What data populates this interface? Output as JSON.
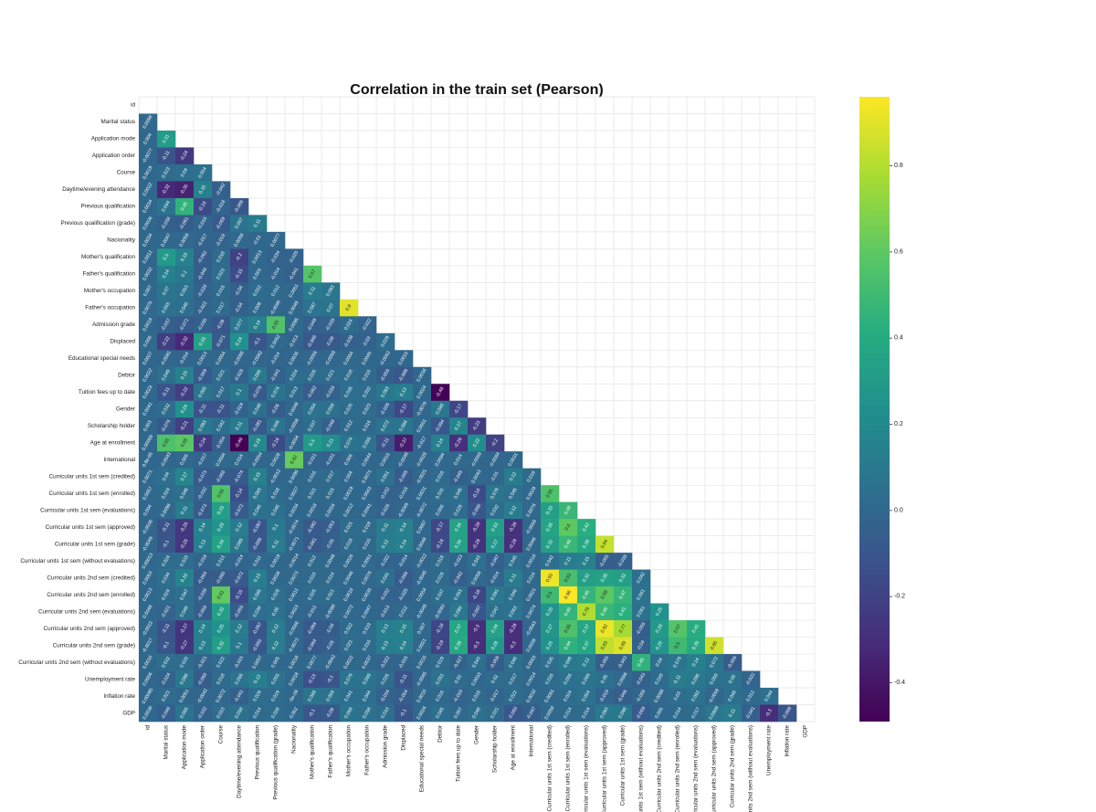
{
  "chart_data": {
    "type": "heatmap",
    "title": "Correlation in the train set (Pearson)",
    "colormap": "viridis",
    "mask": "upper-triangle",
    "grid": true,
    "colorbar": {
      "placement": "right",
      "range": [
        -0.49,
        0.96
      ],
      "ticks": [
        "0.8",
        "0.6",
        "0.4",
        "0.2",
        "0.0",
        "-0.2",
        "-0.4"
      ],
      "tick_values": [
        0.8,
        0.6,
        0.4,
        0.2,
        0.0,
        -0.2,
        -0.4
      ]
    },
    "labels": [
      "id",
      "Marital status",
      "Application mode",
      "Application order",
      "Course",
      "Daytime/evening attendance",
      "Previous qualification",
      "Previous qualification (grade)",
      "Nacionality",
      "Mother's qualification",
      "Father's qualification",
      "Mother's occupation",
      "Father's occupation",
      "Admission grade",
      "Displaced",
      "Educational special needs",
      "Debtor",
      "Tuition fees up to date",
      "Gender",
      "Scholarship holder",
      "Age at enrollment",
      "International",
      "Curricular units 1st sem (credited)",
      "Curricular units 1st sem (enrolled)",
      "Curricular units 1st sem (evaluations)",
      "Curricular units 1st sem (approved)",
      "Curricular units 1st sem (grade)",
      "Curricular units 1st sem (without evaluations)",
      "Curricular units 2nd sem (credited)",
      "Curricular units 2nd sem (enrolled)",
      "Curricular units 2nd sem (evaluations)",
      "Curricular units 2nd sem (approved)",
      "Curricular units 2nd sem (grade)",
      "Curricular units 2nd sem (without evaluations)",
      "Unemployment rate",
      "Inflation rate",
      "GDP"
    ],
    "cell_text": [
      [],
      [
        "0.0098"
      ],
      [
        "0.004",
        "0.31"
      ],
      [
        "-0.0077",
        "-0.11",
        "-0.24"
      ],
      [
        "0.0019",
        "0.023",
        "0.04",
        "0.054"
      ],
      [
        "0.0022",
        "-0.32",
        "-0.35",
        "0.15",
        "-0.042"
      ],
      [
        "0.0034",
        "0.064",
        "0.45",
        "-0.16",
        "-0.018",
        "-0.086"
      ],
      [
        "0.0036",
        "-0.038",
        "-0.061",
        "-0.016",
        "-0.069",
        "0.067",
        "0.11"
      ],
      [
        "0.0034",
        "0.0047",
        "0.0059",
        "-0.017",
        "-0.019",
        "0.0068",
        "-0.01",
        "0.0077"
      ],
      [
        "0.0012",
        "0.3",
        "0.16",
        "-0.062",
        "0.018",
        "-0.2",
        "0.0013",
        "-0.034",
        "-0.025"
      ],
      [
        "0.0032",
        "0.14",
        "0.1",
        "-0.046",
        "0.023",
        "-0.15",
        "0.003",
        "-0.014",
        "-0.041",
        "0.57"
      ],
      [
        "0.007",
        "0.07",
        "0.053",
        "-0.026",
        "0.016",
        "-0.04",
        "0.022",
        "0.012",
        "0.0051",
        "0.11",
        "0.083"
      ],
      [
        "0.0075",
        "0.055",
        "0.046",
        "-0.022",
        "0.017",
        "-0.04",
        "0.008",
        "-0.0096",
        "0.0049",
        "0.067",
        "0.07",
        "0.9"
      ],
      [
        "0.0019",
        "-0.037",
        "-0.071",
        "-0.036",
        "-0.09",
        "0.077",
        "0.14",
        "0.56",
        "0.0095",
        "-0.049",
        "-0.028",
        "0.024",
        "-0.022"
      ],
      [
        "0.006",
        "-0.22",
        "-0.32",
        "0.33",
        "-0.071",
        "0.24",
        "-0.1",
        "0.0062",
        "-0.013",
        "-0.086",
        "-0.08",
        "-0.038",
        "-0.03",
        "0.029"
      ],
      [
        "0.0027",
        "-0.0081",
        "-0.014",
        "0.0013",
        "0.0054",
        "-0.0095",
        "-0.0082",
        "-0.014",
        "0.0036",
        "-0.0056",
        "-0.0059",
        "0.0064",
        "0.0045",
        "-0.0062",
        "0.0015"
      ],
      [
        "0.0022",
        "0.049",
        "0.15",
        "-0.069",
        "0.021",
        "-0.026",
        "0.095",
        "-0.041",
        "0.024",
        "0.026",
        "0.021",
        "0.018",
        "0.016",
        "-0.056",
        "-0.089",
        "0.0036"
      ],
      [
        "0.0023",
        "-0.11",
        "-0.22",
        "0.065",
        "0.017",
        "0.1",
        "-0.078",
        "0.074",
        "0.013",
        "-0.062",
        "-0.028",
        "0.035",
        "0.032",
        "0.093",
        "0.13",
        "0.0024",
        "-0.48"
      ],
      [
        "0.0041",
        "0.032",
        "0.24",
        "-0.11",
        "-0.11",
        "-0.024",
        "0.048",
        "-0.06",
        "0.0049",
        "0.054",
        "0.058",
        "0.025",
        "0.023",
        "-0.036",
        "-0.17",
        "-0.0078",
        "0.086",
        "-0.17"
      ],
      [
        "0.003",
        "-0.076",
        "-0.21",
        "0.093",
        "0.042",
        "0.11",
        "-0.081",
        "0.066",
        "-0.0058",
        "0.037",
        "-0.049",
        "0.012",
        "0.016",
        "0.072",
        "0.084",
        "0.0061",
        "-0.094",
        "0.17",
        "-0.23"
      ],
      [
        "0.00069",
        "0.55",
        "0.59",
        "-0.24",
        "-0.054",
        "-0.49",
        "0.19",
        "-0.16",
        "-0.0054",
        "0.3",
        "0.21",
        "0.074",
        "0.059",
        "-0.11",
        "-0.37",
        "-0.017",
        "0.14",
        "-0.29",
        "0.22",
        "-0.2"
      ],
      [
        "0.8e-05",
        "-0.0043",
        "0.006",
        "-0.017",
        "0.0084",
        "0.014",
        "-0.0054",
        "0.0028",
        "0.62",
        "-0.021",
        "-0.031",
        "0.006",
        "0.0044",
        "0.0015",
        "-0.0048",
        "-0.0028",
        "0.0094",
        "0.014",
        "-0.0069",
        "-0.0064",
        "0.0031"
      ],
      [
        "0.0071",
        "0.04",
        "0.17",
        "-0.073",
        "-0.066",
        "-0.074",
        "0.15",
        "-0.0012",
        "0.0095",
        "0.016",
        "0.017",
        "0.004",
        "0.0071",
        "0.051",
        "-0.065",
        "-0.0021",
        "0.018",
        "-0.045",
        "0.0043",
        "-0.01",
        "0.12",
        "0.018"
      ],
      [
        "0.0057",
        "0.024",
        "0.046",
        "-0.032",
        "0.56",
        "-0.14",
        "0.083",
        "0.018",
        "0.0027",
        "0.021",
        "0.015",
        "0.0019",
        "0.0043",
        "-0.032",
        "-0.018",
        "0.0031",
        "0.031",
        "0.045",
        "-0.16",
        "0.078",
        "0.045",
        "0.0029",
        "0.55"
      ],
      [
        "0.004",
        "0.0098",
        "0.11",
        "-0.073",
        "0.33",
        "-0.072",
        "0.046",
        "0.046",
        "0.0034",
        "0.0018",
        "0.0026",
        "0.0012",
        "0.0041",
        "-0.026",
        "-0.0069",
        "-0.0072",
        "0.006",
        "0.029",
        "-0.096",
        "0.032",
        "0.12",
        "0.0076",
        "0.33",
        "0.48"
      ],
      [
        "-0.0036",
        "-0.11",
        "-0.25",
        "0.14",
        "0.26",
        "0.12",
        "-0.097",
        "0.1",
        "-0.0074",
        "-0.082",
        "-0.053",
        "0.021",
        "0.018",
        "0.11",
        "0.14",
        "0.0087",
        "-0.17",
        "0.34",
        "-0.28",
        "0.33",
        "-0.28",
        "-0.0059",
        "0.36",
        "0.6",
        "0.42"
      ],
      [
        "-0.0049",
        "-0.1",
        "-0.25",
        "0.13",
        "0.34",
        "0.089",
        "-0.088",
        "0.11",
        "-0.0071",
        "-0.081",
        "-0.05",
        "0.019",
        "0.016",
        "0.12",
        "0.14",
        "0.0048",
        "-0.16",
        "0.34",
        "-0.28",
        "0.27",
        "-0.29",
        "0.0046",
        "0.32",
        "0.48",
        "0.39",
        "0.84"
      ],
      [
        "0.00013",
        "0.024",
        "0.033",
        "-0.018",
        "0.013",
        "-0.014",
        "0.011",
        "0.0018",
        "-0.0014",
        "0.012",
        "0.0049",
        "0.0026",
        "0.0061",
        "-0.022",
        "-0.014",
        "-0.0012",
        "0.018",
        "-0.023",
        "0.043",
        "-0.047",
        "0.045",
        "0.0016",
        "0.042",
        "0.11",
        "0.15",
        "-0.055",
        "-0.038"
      ],
      [
        "0.0053",
        "0.034",
        "0.16",
        "-0.064",
        "-0.066",
        "-0.072",
        "0.13",
        "0.0036",
        "0.0073",
        "0.016",
        "0.014",
        "0.0046",
        "0.0076",
        "0.041",
        "-0.068",
        "-0.0045",
        "0.019",
        "-0.042",
        "0.0058",
        "-0.014",
        "0.11",
        "0.014",
        "0.93",
        "0.53",
        "0.32",
        "0.35",
        "0.32",
        "0.042"
      ],
      [
        "0.0013",
        "0.024",
        "0.047",
        "-0.039",
        "0.61",
        "-0.15",
        "0.085",
        "0.029",
        "0.0011",
        "0.025",
        "0.021",
        "0.0016",
        "0.0035",
        "-0.032",
        "-0.025",
        "0.0054",
        "0.037",
        "0.053",
        "-0.18",
        "0.091",
        "0.046",
        "0.0021",
        "0.5",
        "0.96",
        "0.46",
        "0.59",
        "0.47",
        "0.061"
      ],
      [
        "0.0048",
        "-0.021",
        "0.048",
        "-0.056",
        "0.33",
        "-0.055",
        "0.038",
        "0.06",
        "0.0023",
        "-0.012",
        "-0.0088",
        "0.0072",
        "0.0047",
        "-0.013",
        "0.012",
        "-0.0049",
        "-0.0093",
        "0.086",
        "-0.097",
        "0.047",
        "0.063",
        "0.0074",
        "0.26",
        "0.46",
        "0.79",
        "0.48",
        "0.43",
        "0.061",
        "0.25"
      ],
      [
        "-0.0022",
        "-0.11",
        "-0.27",
        "0.14",
        "0.25",
        "0.12",
        "-0.097",
        "0.12",
        "-0.0066",
        "-0.084",
        "-0.06",
        "0.022",
        "0.019",
        "0.13",
        "0.15",
        "0.007",
        "-0.18",
        "0.37",
        "-0.3",
        "0.34",
        "-0.29",
        "-0.0043",
        "0.27",
        "0.55",
        "0.37",
        "0.92",
        "0.77",
        "-0.056",
        "0.29",
        "0.57",
        "0.41"
      ],
      [
        "-0.0017",
        "-0.1",
        "-0.27",
        "0.13",
        "0.32",
        "0.1",
        "-0.093",
        "0.12",
        "-0.0073",
        "-0.084",
        "-0.05",
        "0.021",
        "0.016",
        "0.13",
        "0.14",
        "0.0021",
        "-0.19",
        "0.39",
        "-0.3",
        "0.28",
        "-0.3",
        "0.0038",
        "0.25",
        "0.44",
        "0.37",
        "0.83",
        "0.89",
        "-0.04",
        "0.26",
        "0.5",
        "0.39",
        "0.86"
      ],
      [
        "0.0033",
        "0.032",
        "0.033",
        "-0.021",
        "0.022",
        "-0.015",
        "0.0057",
        "0.005",
        "0.0018",
        "0.0077",
        "-0.0042",
        "0.0022",
        "0.0037",
        "-0.022",
        "-0.015",
        "0.0015",
        "0.019",
        "-0.027",
        "0.043",
        "-0.058",
        "0.046",
        "0.0003",
        "0.035",
        "0.098",
        "0.12",
        "-0.055",
        "-0.043",
        "0.45",
        "0.04",
        "0.079",
        "0.14",
        "0.072",
        "-0.066"
      ],
      [
        "0.0006",
        "-0.024",
        "0.096",
        "-0.066",
        "0.018",
        "0.066",
        "0.13",
        "0.055",
        "0.0018",
        "-0.13",
        "-0.1",
        "0.079",
        "0.069",
        "0.025",
        "-0.11",
        "-0.0065",
        "0.051",
        "0.02",
        "0.0033",
        "0.02",
        "0.017",
        "0.0014",
        "0.026",
        "0.055",
        "0.069",
        "0.05",
        "0.0086",
        "-0.043",
        "0.028",
        "0.11",
        "0.095",
        "0.059",
        "0.06",
        "-0.022"
      ],
      [
        "0.00085",
        "0.021",
        "0.0051",
        "-0.0042",
        "0.0072",
        "-0.041",
        "0.029",
        "0.019",
        "-5e-06",
        "0.069",
        "0.059",
        "0.041",
        "0.044",
        "-0.034",
        "-0.054",
        "0.0015",
        "0.016",
        "-0.019",
        "0.016",
        "-0.017",
        "0.022",
        "0.0032",
        "0.0081",
        "0.024",
        "0.054",
        "-0.019",
        "-0.046",
        "-0.009",
        "0.0088",
        "0.03",
        "0.062",
        "-0.0058",
        "0.046",
        "0.012",
        "0.044"
      ],
      [
        "0.0039",
        "-0.046",
        "0.066",
        "-0.032",
        "0.023",
        "0.058",
        "0.014",
        "0.028",
        "0.002",
        "-0.1",
        "-0.08",
        "0.069",
        "0.058",
        "0.033",
        "-0.1",
        "0.0026",
        "0.045",
        "0.007",
        "0.048",
        "0.021",
        "-0.093",
        "-0.047",
        "0.0059",
        "0.014",
        "0.014",
        "0.093",
        "0.098",
        "-0.069",
        "0.005",
        "0.014",
        "0.017",
        "0.0869",
        "0.11",
        "-0.041",
        "-0.3",
        "-0.098"
      ]
    ]
  }
}
